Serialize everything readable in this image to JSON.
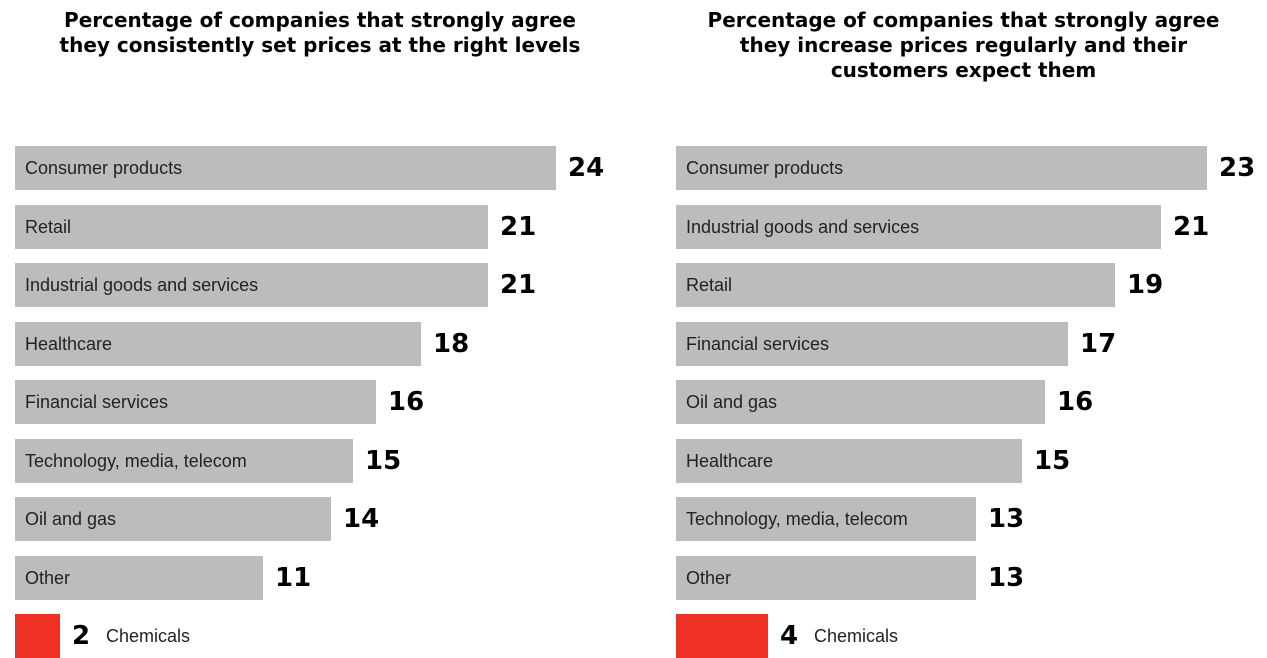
{
  "colors": {
    "bar": "#bcbcbe",
    "highlight": "#ee3124"
  },
  "chart_data": [
    {
      "type": "bar",
      "orientation": "horizontal",
      "title_lines": [
        "Percentage of companies that strongly agree",
        "they consistently set prices at the right levels"
      ],
      "categories": [
        "Consumer products",
        "Retail",
        "Industrial goods and services",
        "Healthcare",
        "Financial services",
        "Technology, media, telecom",
        "Oil and gas",
        "Other",
        "Chemicals"
      ],
      "values": [
        24,
        21,
        21,
        18,
        16,
        15,
        14,
        11,
        2
      ],
      "highlight_category": "Chemicals",
      "xlim": [
        0,
        24
      ],
      "grid": false
    },
    {
      "type": "bar",
      "orientation": "horizontal",
      "title_lines": [
        "Percentage of companies that strongly agree",
        "they increase prices regularly and their",
        "customers expect them"
      ],
      "categories": [
        "Consumer products",
        "Industrial goods and services",
        "Retail",
        "Financial services",
        "Oil and gas",
        "Healthcare",
        "Technology, media, telecom",
        "Other",
        "Chemicals"
      ],
      "values": [
        23,
        21,
        19,
        17,
        16,
        15,
        13,
        13,
        4
      ],
      "highlight_category": "Chemicals",
      "xlim": [
        0,
        23
      ],
      "grid": false
    }
  ]
}
